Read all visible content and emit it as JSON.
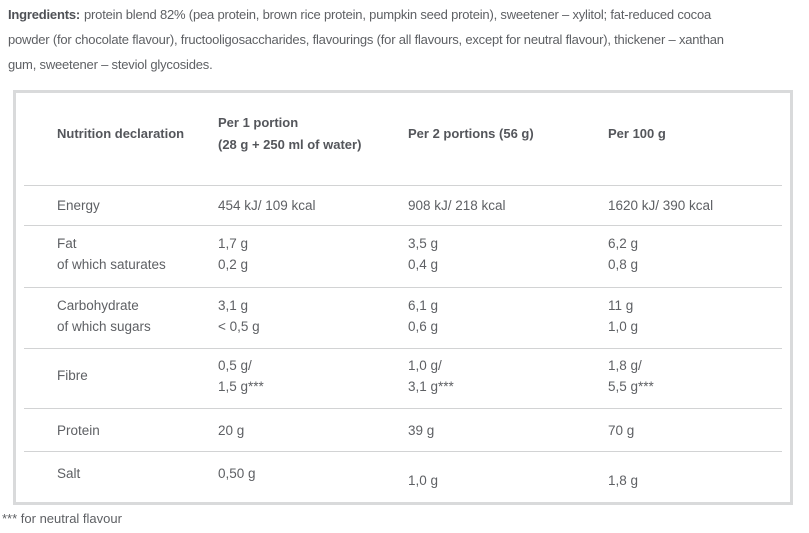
{
  "ingredients": {
    "label": "Ingredients:",
    "lines": [
      "protein blend 82% (pea protein, brown rice protein, pumpkin seed protein), sweetener – xylitol; fat-reduced cocoa",
      "powder (for chocolate flavour), fructooligosaccharides, flavourings (for all flavours, except for neutral flavour), thickener – xanthan",
      "gum, sweetener – steviol glycosides."
    ]
  },
  "table": {
    "header": {
      "col1": "Nutrition declaration",
      "col2_line1": "Per 1 portion",
      "col2_line2": "(28 g + 250 ml of water)",
      "col3": "Per 2 portions (56 g)",
      "col4": "Per 100 g"
    },
    "rows": [
      {
        "name": [
          "Energy"
        ],
        "per1": [
          "454 kJ/ 109 kcal"
        ],
        "per2": [
          "908 kJ/ 218 kcal"
        ],
        "per100": [
          "1620 kJ/ 390 kcal"
        ]
      },
      {
        "name": [
          "Fat",
          "of which saturates"
        ],
        "per1": [
          "1,7 g",
          "0,2 g"
        ],
        "per2": [
          "3,5 g",
          "0,4 g"
        ],
        "per100": [
          "6,2 g",
          "0,8 g"
        ]
      },
      {
        "name": [
          "Carbohydrate",
          "of which sugars"
        ],
        "per1": [
          "3,1 g",
          "< 0,5 g"
        ],
        "per2": [
          "6,1 g",
          "0,6 g"
        ],
        "per100": [
          "11 g",
          "1,0 g"
        ]
      },
      {
        "name": [
          "Fibre"
        ],
        "per1": [
          "0,5 g/",
          "1,5 g***"
        ],
        "per2": [
          "1,0 g/",
          "3,1 g***"
        ],
        "per100": [
          "1,8 g/",
          "5,5 g***"
        ]
      },
      {
        "name": [
          "Protein"
        ],
        "per1": [
          "20 g"
        ],
        "per2": [
          "39 g"
        ],
        "per100": [
          "70 g"
        ]
      },
      {
        "name": [
          "Salt"
        ],
        "per1": [
          "0,50 g"
        ],
        "per2": [
          "1,0 g"
        ],
        "per100": [
          "1,8 g"
        ]
      }
    ]
  },
  "footnote": "*** for neutral flavour"
}
